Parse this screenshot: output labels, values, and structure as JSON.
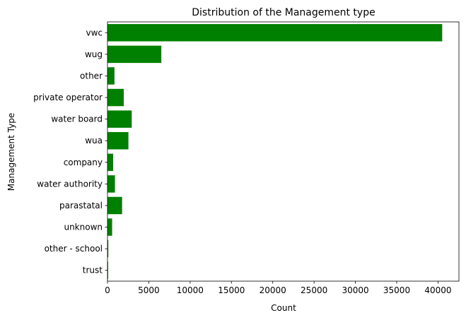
{
  "chart_data": {
    "type": "bar",
    "orientation": "horizontal",
    "title": "Distribution of the Management type",
    "xlabel": "Count",
    "ylabel": "Management Type",
    "categories": [
      "vwc",
      "wug",
      "other",
      "private operator",
      "water board",
      "wua",
      "company",
      "water authority",
      "parastatal",
      "unknown",
      "other - school",
      "trust"
    ],
    "values": [
      40507,
      6515,
      844,
      1971,
      2933,
      2535,
      685,
      904,
      1768,
      561,
      99,
      78
    ],
    "xlim": [
      0,
      42530
    ],
    "xticks": [
      0,
      5000,
      10000,
      15000,
      20000,
      25000,
      30000,
      35000,
      40000
    ],
    "bar_color": "#008000",
    "grid": false,
    "legend": "none"
  }
}
